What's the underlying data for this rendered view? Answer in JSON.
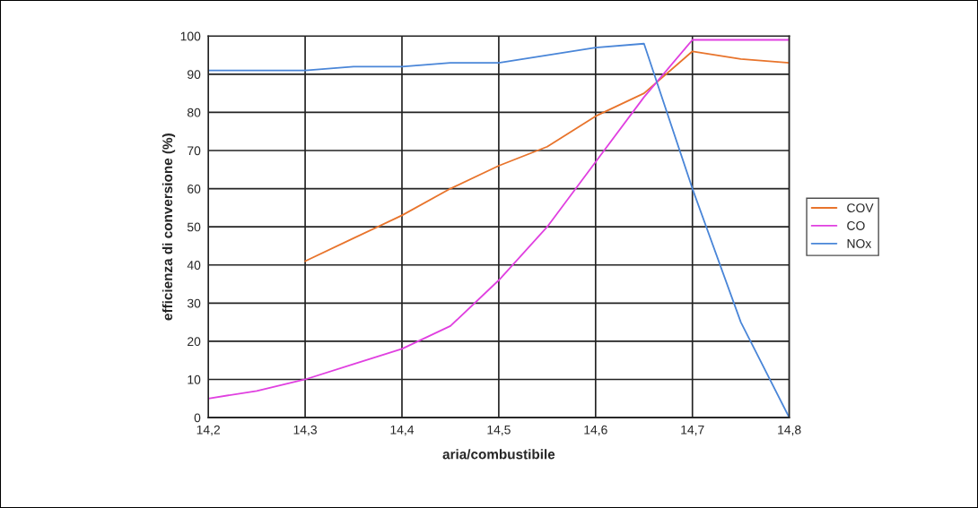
{
  "chart_data": {
    "type": "line",
    "xlabel": "aria/combustibile",
    "ylabel": "efficienza di conversione (%)",
    "xlim": [
      14.2,
      14.8
    ],
    "xticks": [
      {
        "value": 14.2,
        "label": "14,2"
      },
      {
        "value": 14.3,
        "label": "14,3"
      },
      {
        "value": 14.4,
        "label": "14,4"
      },
      {
        "value": 14.5,
        "label": "14,5"
      },
      {
        "value": 14.6,
        "label": "14,6"
      },
      {
        "value": 14.7,
        "label": "14,7"
      },
      {
        "value": 14.8,
        "label": "14,8"
      }
    ],
    "ylim": [
      0,
      100
    ],
    "yticks": [
      0,
      10,
      20,
      30,
      40,
      50,
      60,
      70,
      80,
      90,
      100
    ],
    "grid": true,
    "legend": "right",
    "marker": "none",
    "line_style": "solid",
    "series": [
      {
        "name": "COV",
        "color": "#e8742c",
        "x": [
          14.3,
          14.35,
          14.4,
          14.45,
          14.5,
          14.55,
          14.6,
          14.65,
          14.7,
          14.75,
          14.8
        ],
        "values": [
          41,
          47,
          53,
          60,
          66,
          71,
          79,
          85,
          96,
          94,
          93
        ]
      },
      {
        "name": "CO",
        "color": "#e040e0",
        "x": [
          14.2,
          14.25,
          14.3,
          14.35,
          14.4,
          14.45,
          14.5,
          14.55,
          14.6,
          14.65,
          14.7,
          14.75,
          14.8
        ],
        "values": [
          5,
          7,
          10,
          14,
          18,
          24,
          36,
          50,
          67,
          84,
          99,
          99,
          99
        ]
      },
      {
        "name": "NOx",
        "color": "#4a86d8",
        "x": [
          14.2,
          14.25,
          14.3,
          14.35,
          14.4,
          14.45,
          14.5,
          14.55,
          14.6,
          14.65,
          14.7,
          14.75,
          14.8
        ],
        "values": [
          91,
          91,
          91,
          92,
          92,
          93,
          93,
          95,
          97,
          98,
          60,
          25,
          0
        ]
      }
    ]
  }
}
